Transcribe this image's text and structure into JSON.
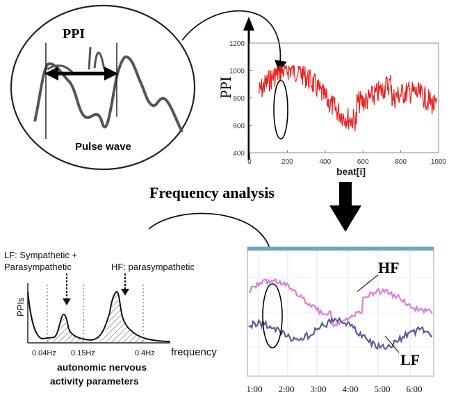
{
  "pulse_panel": {
    "ppi_label": "PPI",
    "pulse_wave_label": "Pulse wave"
  },
  "ppi_chart": {
    "ylabel": "PPI",
    "xlabel": "beat[i]",
    "y_ticks": [
      "1200",
      "1000",
      "800",
      "600",
      "400"
    ],
    "x_ticks": [
      "0",
      "200",
      "400",
      "600",
      "800",
      "1000"
    ],
    "line_color": "#e8201e"
  },
  "frequency_analysis_label": "Frequency analysis",
  "spectrum_panel": {
    "lf_label_line1": "LF: Sympathetic +",
    "lf_label_line2": "Parasympathetic",
    "hf_label": "HF: parasympathetic",
    "ylabel": "PPIs",
    "xlabel": "frequency",
    "freq_ticks": [
      "0.04Hz",
      "0.15Hz",
      "0.4Hz"
    ],
    "caption_line1": "autonomic nervous",
    "caption_line2": "activity parameters"
  },
  "hf_lf_chart": {
    "hf_label": "HF",
    "lf_label": "LF",
    "time_ticks": [
      "1:00",
      "2:00",
      "3:00",
      "4:00",
      "5:00",
      "6:00"
    ],
    "hf_color": "#d97fd9",
    "lf_color": "#5a5a9a"
  }
}
